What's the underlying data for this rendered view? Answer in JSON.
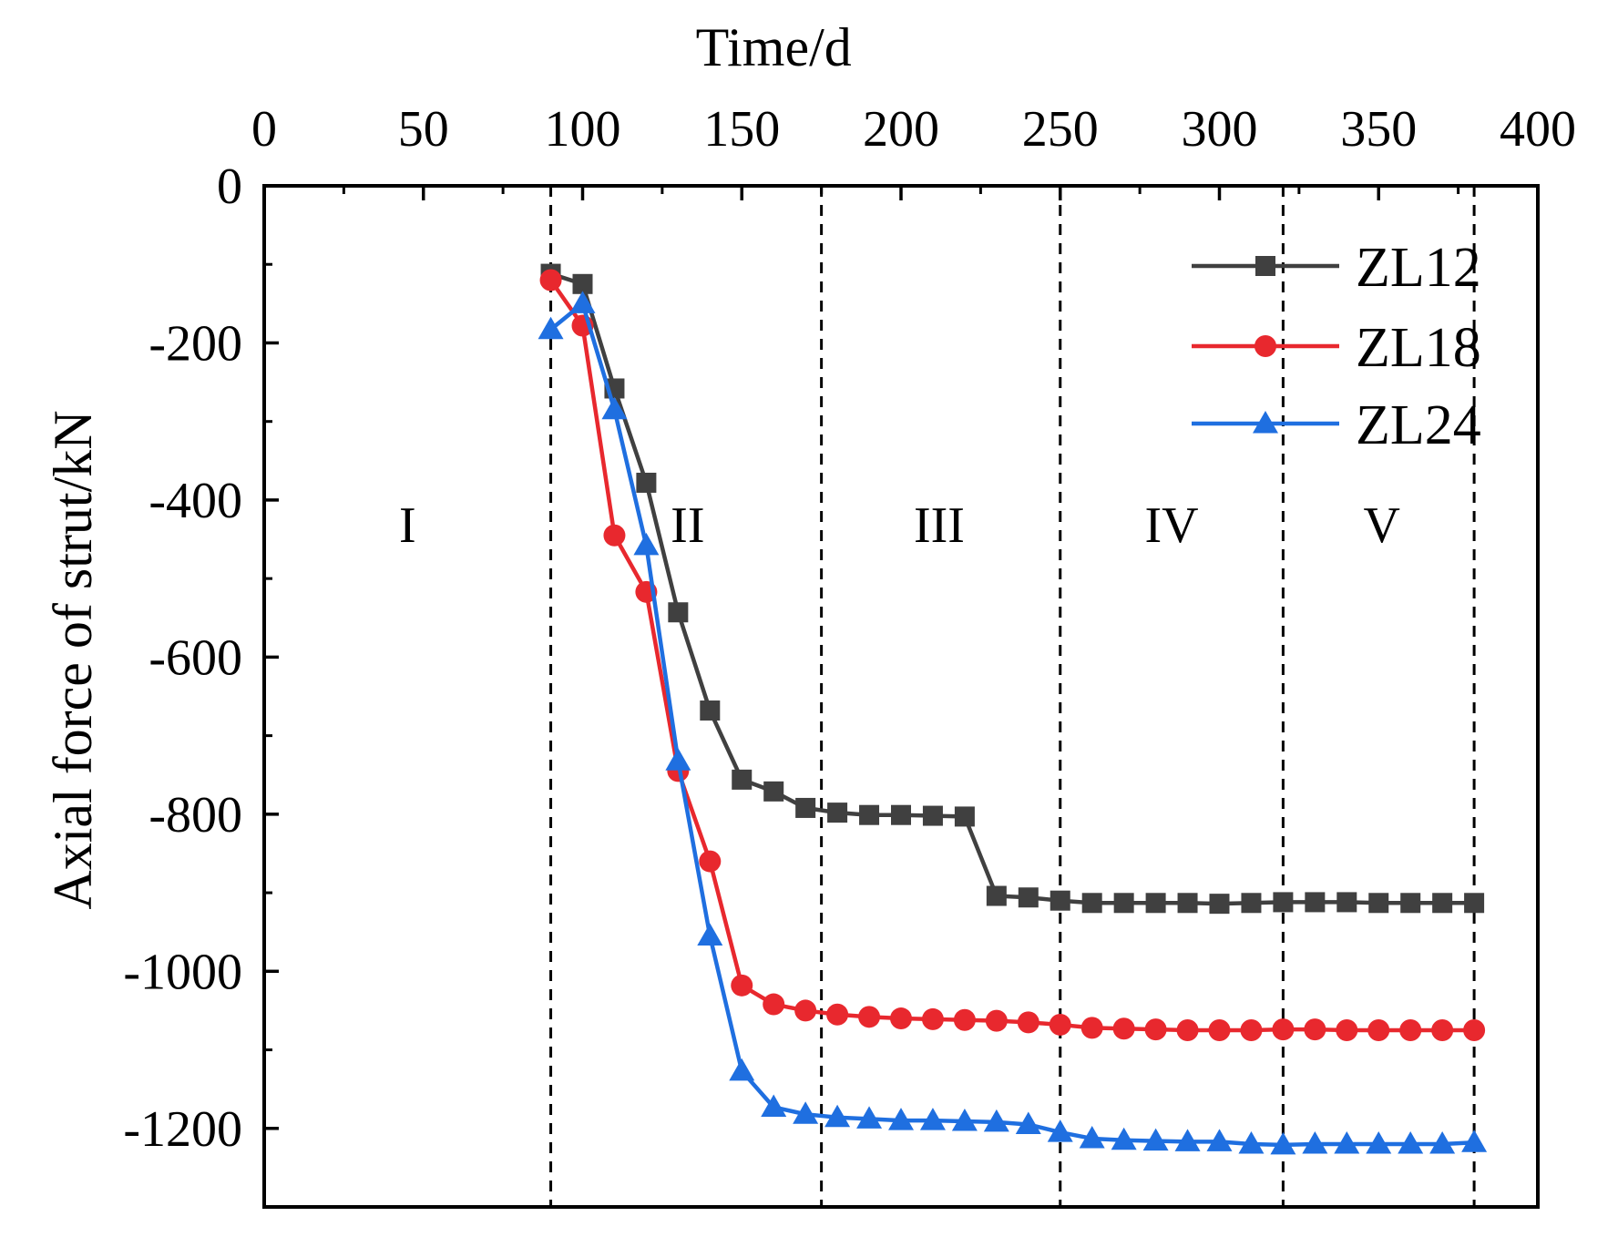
{
  "chart_data": {
    "type": "line",
    "xlabel": "Time/d",
    "ylabel": "Axial force of strut/kN",
    "xlim": [
      0,
      400
    ],
    "ylim": [
      -1300,
      0
    ],
    "x_ticks": [
      0,
      50,
      100,
      150,
      200,
      250,
      300,
      350,
      400
    ],
    "y_ticks": [
      0,
      -200,
      -400,
      -600,
      -800,
      -1000,
      -1200
    ],
    "x_axis_position": "top",
    "grid": false,
    "legend_position": "top-right",
    "phase_boundaries": [
      90,
      175,
      250,
      320,
      380
    ],
    "phases": [
      {
        "label": "I",
        "x": 45,
        "y": -430
      },
      {
        "label": "II",
        "x": 133,
        "y": -430
      },
      {
        "label": "III",
        "x": 212,
        "y": -430
      },
      {
        "label": "IV",
        "x": 285,
        "y": -430
      },
      {
        "label": "V",
        "x": 351,
        "y": -430
      }
    ],
    "series": [
      {
        "name": "ZL12",
        "color": "#404040",
        "marker": "square",
        "x": [
          90,
          100,
          110,
          120,
          130,
          140,
          150,
          160,
          170,
          180,
          190,
          200,
          210,
          220,
          230,
          240,
          250,
          260,
          270,
          280,
          290,
          300,
          310,
          320,
          330,
          340,
          350,
          360,
          370,
          380
        ],
        "y": [
          -112,
          -125,
          -258,
          -378,
          -543,
          -668,
          -756,
          -771,
          -792,
          -798,
          -801,
          -801,
          -802,
          -803,
          -904,
          -906,
          -910,
          -913,
          -913,
          -913,
          -913,
          -914,
          -913,
          -912,
          -912,
          -912,
          -913,
          -913,
          -913,
          -913
        ]
      },
      {
        "name": "ZL18",
        "color": "#e8282e",
        "marker": "circle",
        "x": [
          90,
          100,
          110,
          120,
          130,
          140,
          150,
          160,
          170,
          180,
          190,
          200,
          210,
          220,
          230,
          240,
          250,
          260,
          270,
          280,
          290,
          300,
          310,
          320,
          330,
          340,
          350,
          360,
          370,
          380
        ],
        "y": [
          -120,
          -178,
          -445,
          -517,
          -745,
          -860,
          -1018,
          -1042,
          -1050,
          -1055,
          -1058,
          -1060,
          -1061,
          -1062,
          -1063,
          -1065,
          -1068,
          -1072,
          -1073,
          -1074,
          -1075,
          -1075,
          -1075,
          -1074,
          -1074,
          -1075,
          -1075,
          -1075,
          -1075,
          -1075
        ]
      },
      {
        "name": "ZL24",
        "color": "#1f6fe0",
        "marker": "triangle",
        "x": [
          90,
          100,
          110,
          120,
          130,
          140,
          150,
          160,
          170,
          180,
          190,
          200,
          210,
          220,
          230,
          240,
          250,
          260,
          270,
          280,
          290,
          300,
          310,
          320,
          330,
          340,
          350,
          360,
          370,
          380
        ],
        "y": [
          -183,
          -150,
          -285,
          -458,
          -732,
          -955,
          -1127,
          -1173,
          -1182,
          -1186,
          -1188,
          -1190,
          -1190,
          -1191,
          -1192,
          -1195,
          -1205,
          -1213,
          -1215,
          -1216,
          -1217,
          -1217,
          -1220,
          -1221,
          -1220,
          -1220,
          -1220,
          -1220,
          -1220,
          -1218
        ]
      }
    ]
  }
}
